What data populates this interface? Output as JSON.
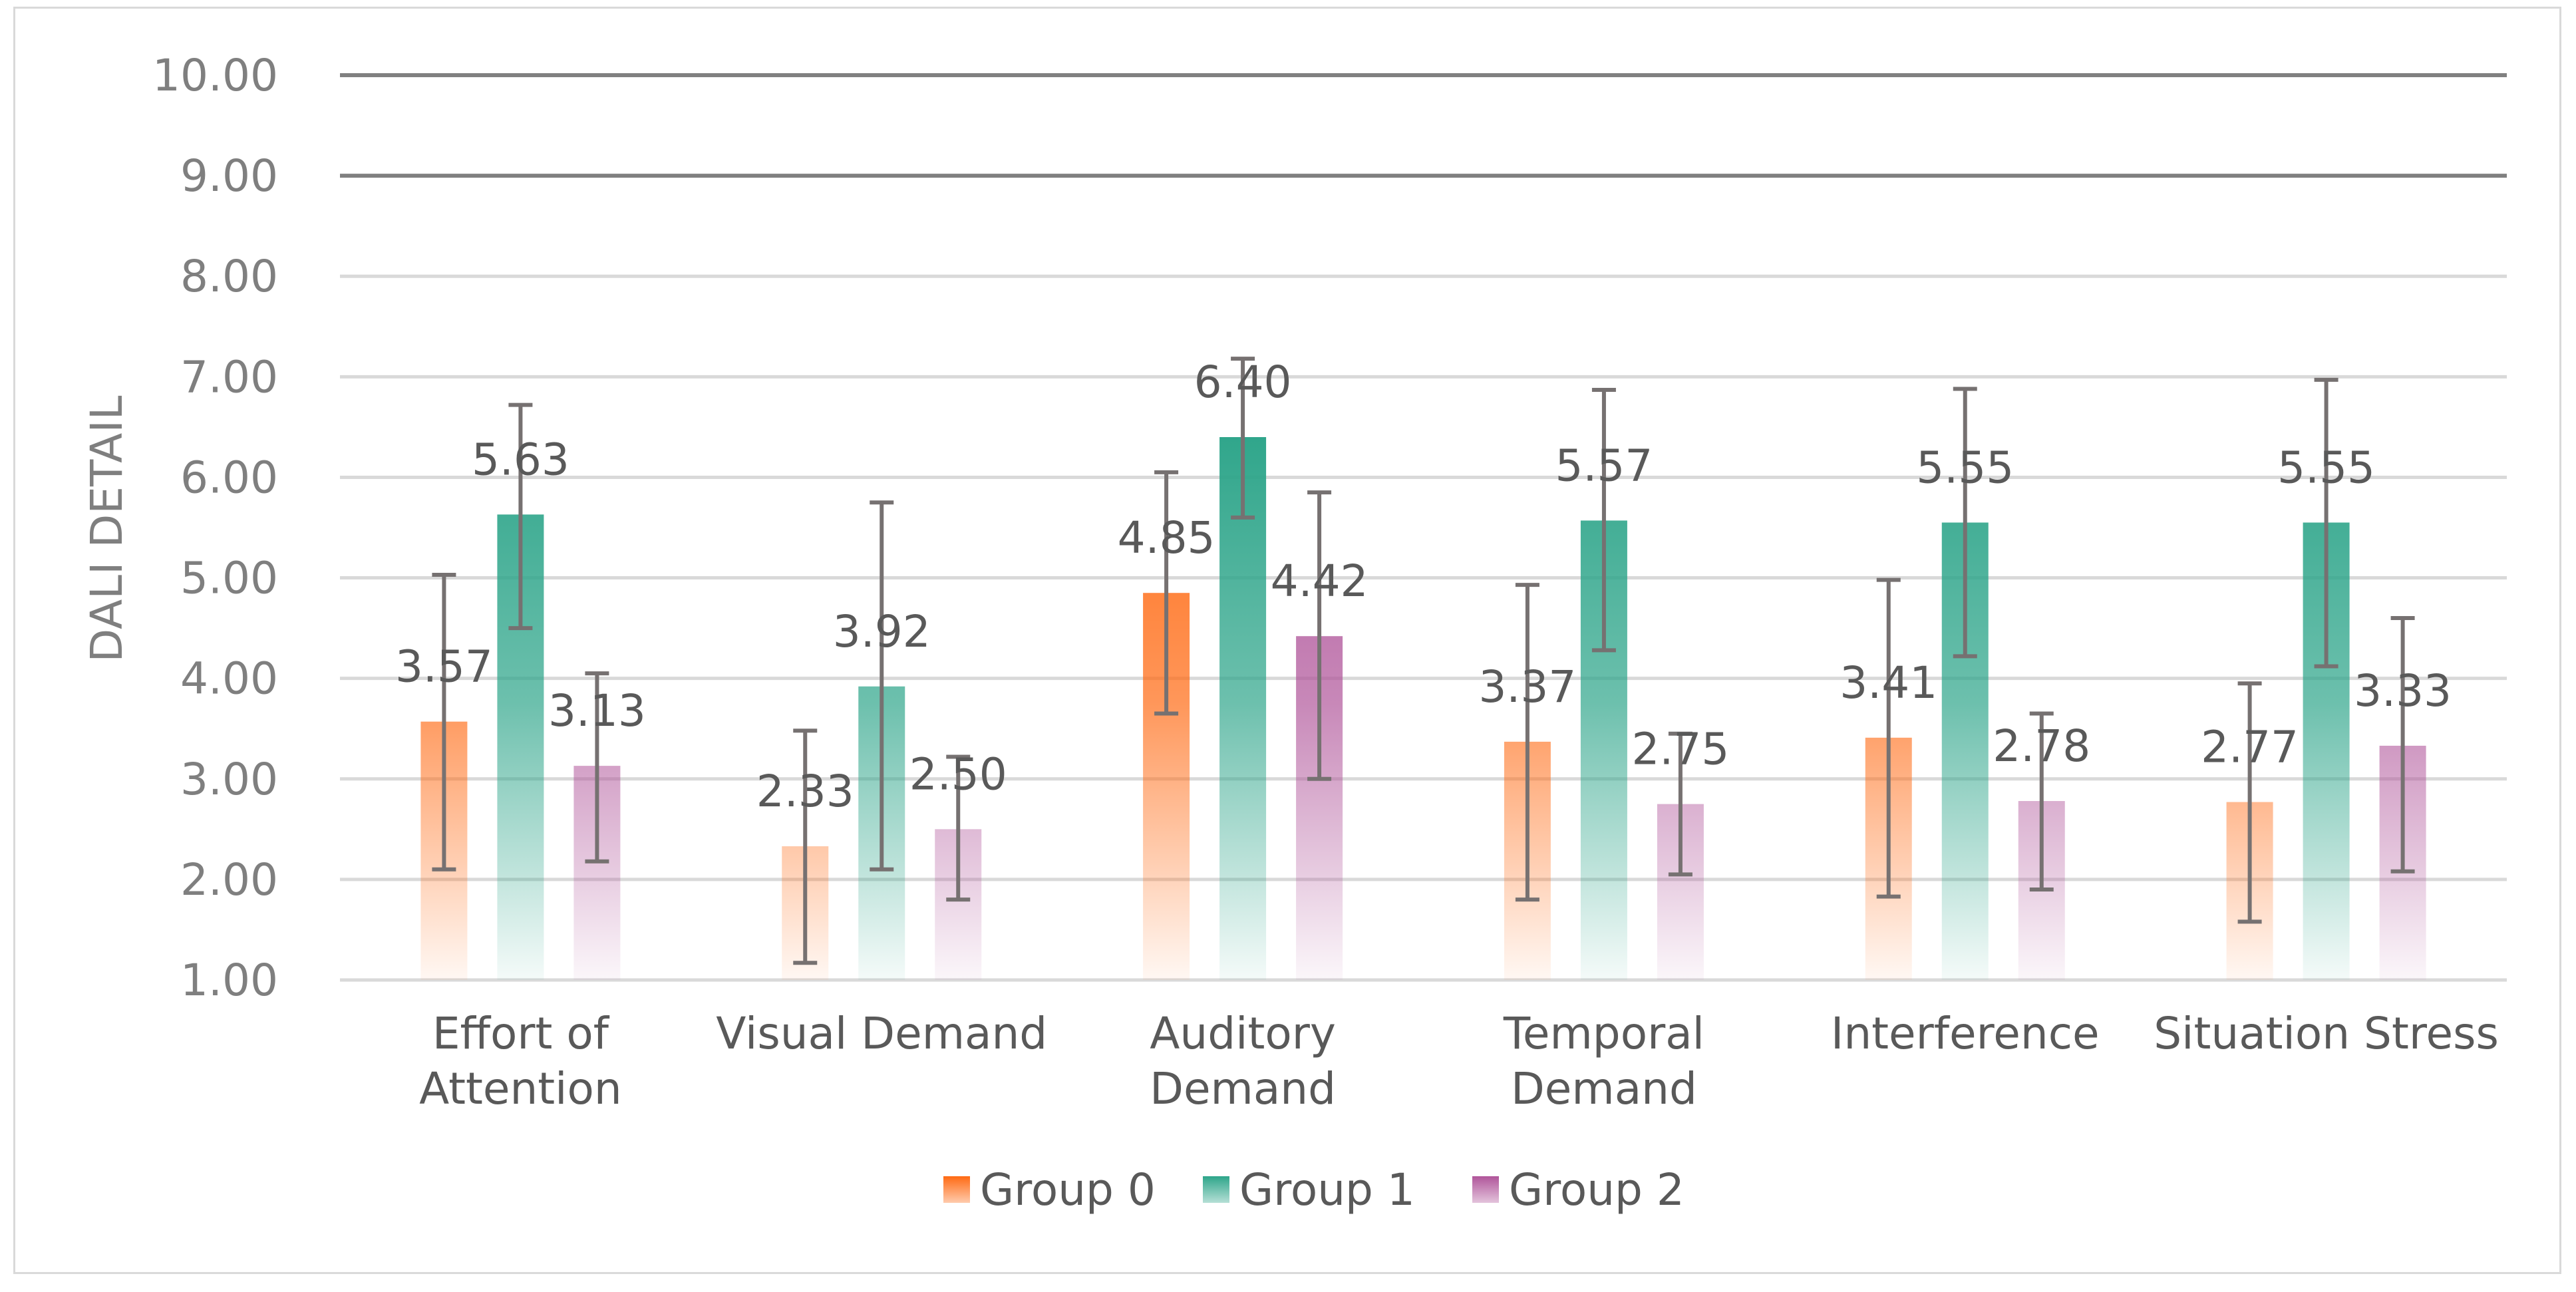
{
  "chart_data": {
    "type": "bar",
    "title": "",
    "xlabel": "",
    "ylabel": "DALI DETAIL",
    "ylim": [
      1,
      10
    ],
    "yticks": [
      "1.00",
      "2.00",
      "3.00",
      "4.00",
      "5.00",
      "6.00",
      "7.00",
      "8.00",
      "9.00",
      "10.00"
    ],
    "categories": [
      [
        "Effort of",
        "Attention"
      ],
      [
        "Visual Demand"
      ],
      [
        "Auditory",
        "Demand"
      ],
      [
        "Temporal",
        "Demand"
      ],
      [
        "Interference"
      ],
      [
        "Situation Stress"
      ]
    ],
    "series": [
      {
        "name": "Group 0",
        "color": "#ff6a13",
        "values": [
          3.57,
          2.33,
          4.85,
          3.37,
          3.41,
          2.77
        ],
        "labels": [
          "3.57",
          "2.33",
          "4.85",
          "3.37",
          "3.41",
          "2.77"
        ],
        "err_low": [
          2.1,
          1.17,
          3.65,
          1.8,
          1.83,
          1.58
        ],
        "err_high": [
          5.03,
          3.48,
          6.05,
          4.93,
          4.98,
          3.95
        ]
      },
      {
        "name": "Group 1",
        "color": "#2ea58a",
        "values": [
          5.63,
          3.92,
          6.4,
          5.57,
          5.55,
          5.55
        ],
        "labels": [
          "5.63",
          "3.92",
          "6.40",
          "5.57",
          "5.55",
          "5.55"
        ],
        "err_low": [
          4.5,
          2.1,
          5.6,
          4.28,
          4.22,
          4.12
        ],
        "err_high": [
          6.72,
          5.75,
          7.18,
          6.87,
          6.88,
          6.97
        ]
      },
      {
        "name": "Group 2",
        "color": "#b0559a",
        "values": [
          3.13,
          2.5,
          4.42,
          2.75,
          2.78,
          3.33
        ],
        "labels": [
          "3.13",
          "2.50",
          "4.42",
          "2.75",
          "2.78",
          "3.33"
        ],
        "err_low": [
          2.18,
          1.8,
          3.0,
          2.05,
          1.9,
          2.08
        ],
        "err_high": [
          4.05,
          3.22,
          5.85,
          3.45,
          3.65,
          4.6
        ]
      }
    ],
    "legend_position": "bottom",
    "error_bars": true
  }
}
